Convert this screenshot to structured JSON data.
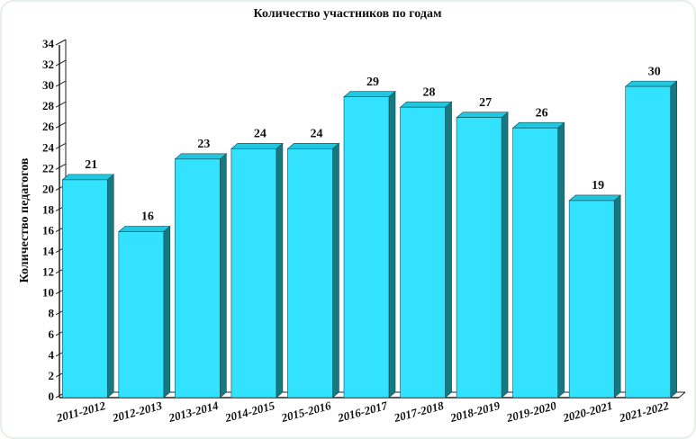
{
  "chart_data": {
    "type": "bar",
    "title": "Количество участников по годам",
    "y_label": "Количество педагогов",
    "categories": [
      "2011-2012",
      "2012-2013",
      "2013-2014",
      "2014-2015",
      "2015-2016",
      "2016-2017",
      "2017-2018",
      "2018-2019",
      "2019-2020",
      "2020-2021",
      "2021-2022"
    ],
    "values": [
      21,
      16,
      23,
      24,
      24,
      29,
      28,
      27,
      26,
      19,
      30
    ],
    "color": "#33e2ff",
    "ylim": [
      0,
      34
    ],
    "yticks": [
      0,
      2,
      4,
      6,
      8,
      10,
      12,
      14,
      16,
      18,
      20,
      22,
      24,
      26,
      28,
      30,
      32,
      34
    ]
  }
}
